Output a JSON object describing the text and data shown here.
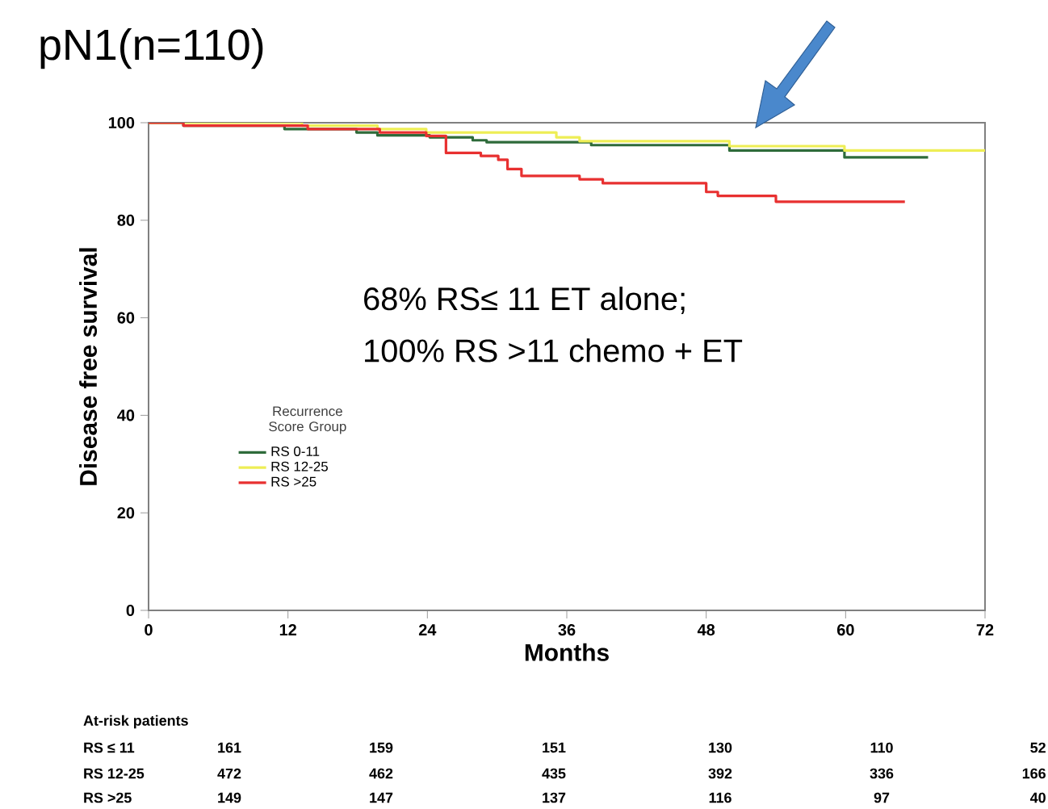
{
  "chart_data": {
    "type": "step",
    "title": "pN1(n=110)",
    "xlabel": "Months",
    "ylabel": "Disease free survival",
    "legend_title": "Recurrence Score Group",
    "xlim": [
      0,
      72
    ],
    "xticks": [
      0,
      12,
      24,
      36,
      48,
      60,
      72
    ],
    "ylim": [
      0,
      100
    ],
    "yticks": [
      0,
      20,
      40,
      60,
      80,
      100
    ],
    "grid": false,
    "legend": "left",
    "marker": "none",
    "line_style": "solid",
    "series": [
      {
        "name": "RS 0-11",
        "color": "#2e6b3a",
        "x": [
          0,
          3,
          11.7,
          17.9,
          19.7,
          24.2,
          27.9,
          29.1,
          38.1,
          50,
          59.9,
          67.1
        ],
        "values": [
          100,
          99.4,
          98.7,
          98,
          97.4,
          97,
          96.4,
          96,
          95.4,
          94.3,
          92.9,
          92.9
        ]
      },
      {
        "name": "RS 12-25",
        "color": "#eeee55",
        "x": [
          0,
          13.2,
          19.7,
          23.9,
          35.1,
          37.1,
          50,
          59.9,
          72
        ],
        "values": [
          100,
          99.4,
          98.7,
          98,
          97,
          96.2,
          95.2,
          94.3,
          94.3
        ]
      },
      {
        "name": "RS >25",
        "color": "#e83030",
        "x": [
          0,
          3,
          13.7,
          19.9,
          23.9,
          25.6,
          28.6,
          30.1,
          30.9,
          32.1,
          37.1,
          39.1,
          48,
          49,
          54,
          65.1
        ],
        "values": [
          100,
          99.4,
          98.7,
          98,
          97.3,
          93.8,
          93.2,
          92.4,
          90.5,
          89.1,
          88.4,
          87.6,
          85.8,
          85,
          83.8,
          83.8
        ]
      }
    ],
    "annotations": [
      "68%  RS≤ 11 ET alone;",
      "100% RS >11 chemo + ET",
      "At-risk patients",
      "RS ≤ 11",
      "161",
      "159",
      "151",
      "130",
      "110",
      "52",
      "RS 12-25",
      "472",
      "462",
      "435",
      "392",
      "336",
      "166",
      "RS >25",
      "149",
      "147",
      "137",
      "116",
      "97",
      "40"
    ]
  }
}
